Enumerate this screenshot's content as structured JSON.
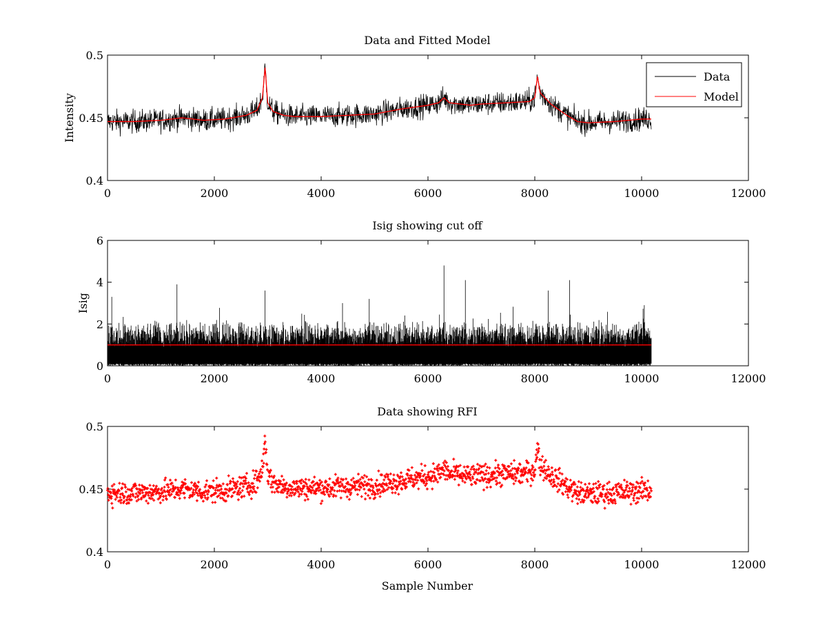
{
  "figure": {
    "background": "#ffffff"
  },
  "chart_data": [
    {
      "type": "line",
      "title": "Data and Fitted Model",
      "xlabel": "",
      "ylabel": "Intensity",
      "xlim": [
        0,
        12000
      ],
      "ylim": [
        0.4,
        0.5
      ],
      "xticks": [
        0,
        2000,
        4000,
        6000,
        8000,
        10000,
        12000
      ],
      "xtick_labels": [
        "0",
        "2000",
        "4000",
        "6000",
        "8000",
        "10000",
        "12000"
      ],
      "yticks": [
        0.4,
        0.45,
        0.5
      ],
      "ytick_labels": [
        "0.4",
        "0.45",
        "0.5"
      ],
      "legend": {
        "position": "top-right",
        "entries": [
          "Data",
          "Model"
        ]
      },
      "series": [
        {
          "name": "Data",
          "color": "#000000",
          "style": "noisy-line",
          "noise": 0.0045,
          "x": [
            0,
            500,
            1000,
            1400,
            1800,
            2200,
            2600,
            2800,
            2900,
            2950,
            3000,
            3100,
            3300,
            3500,
            4000,
            4500,
            5000,
            5500,
            6000,
            6200,
            6300,
            6400,
            6600,
            6800,
            7000,
            7500,
            7900,
            8000,
            8050,
            8100,
            8300,
            8600,
            8800,
            9000,
            9500,
            10000,
            10180
          ],
          "values": [
            0.447,
            0.447,
            0.448,
            0.45,
            0.448,
            0.449,
            0.452,
            0.456,
            0.466,
            0.49,
            0.462,
            0.455,
            0.452,
            0.451,
            0.451,
            0.452,
            0.453,
            0.457,
            0.46,
            0.462,
            0.466,
            0.462,
            0.461,
            0.46,
            0.461,
            0.462,
            0.463,
            0.466,
            0.483,
            0.47,
            0.461,
            0.452,
            0.447,
            0.446,
            0.447,
            0.449,
            0.449
          ]
        },
        {
          "name": "Model",
          "color": "#ff0000",
          "style": "line",
          "x": [
            0,
            500,
            1000,
            1400,
            1800,
            2200,
            2600,
            2800,
            2900,
            2950,
            3000,
            3100,
            3300,
            3500,
            4000,
            4500,
            5000,
            5500,
            6000,
            6200,
            6300,
            6400,
            6600,
            6800,
            7000,
            7500,
            7900,
            8000,
            8050,
            8100,
            8300,
            8600,
            8800,
            9000,
            9500,
            10000,
            10180
          ],
          "values": [
            0.447,
            0.447,
            0.448,
            0.45,
            0.448,
            0.449,
            0.452,
            0.456,
            0.466,
            0.49,
            0.462,
            0.455,
            0.452,
            0.451,
            0.451,
            0.452,
            0.453,
            0.457,
            0.46,
            0.462,
            0.466,
            0.462,
            0.461,
            0.46,
            0.461,
            0.462,
            0.463,
            0.466,
            0.483,
            0.47,
            0.461,
            0.452,
            0.447,
            0.446,
            0.447,
            0.449,
            0.449
          ]
        }
      ]
    },
    {
      "type": "line",
      "title": "Isig showing cut off",
      "xlabel": "",
      "ylabel": "Isig",
      "xlim": [
        0,
        12000
      ],
      "ylim": [
        0,
        6
      ],
      "xticks": [
        0,
        2000,
        4000,
        6000,
        8000,
        10000,
        12000
      ],
      "xtick_labels": [
        "0",
        "2000",
        "4000",
        "6000",
        "8000",
        "10000",
        "12000"
      ],
      "yticks": [
        0,
        2,
        4,
        6
      ],
      "ytick_labels": [
        "0",
        "2",
        "4",
        "6"
      ],
      "series": [
        {
          "name": "Isig",
          "color": "#000000",
          "style": "dense-noise",
          "x_range": [
            0,
            10180
          ],
          "typical_max": 2.0,
          "peaks": [
            {
              "x": 80,
              "value": 3.3
            },
            {
              "x": 1300,
              "value": 3.9
            },
            {
              "x": 2950,
              "value": 3.6
            },
            {
              "x": 4400,
              "value": 3.0
            },
            {
              "x": 4900,
              "value": 3.2
            },
            {
              "x": 6300,
              "value": 4.8
            },
            {
              "x": 6700,
              "value": 4.1
            },
            {
              "x": 8250,
              "value": 3.6
            },
            {
              "x": 8650,
              "value": 4.1
            },
            {
              "x": 10050,
              "value": 2.9
            }
          ]
        },
        {
          "name": "Cut off",
          "color": "#ff0000",
          "style": "line",
          "x": [
            0,
            10180
          ],
          "values": [
            1,
            1
          ]
        }
      ]
    },
    {
      "type": "scatter",
      "title": "Data showing RFI",
      "xlabel": "Sample Number",
      "ylabel": "",
      "xlim": [
        0,
        12000
      ],
      "ylim": [
        0.4,
        0.5
      ],
      "xticks": [
        0,
        2000,
        4000,
        6000,
        8000,
        10000,
        12000
      ],
      "xtick_labels": [
        "0",
        "2000",
        "4000",
        "6000",
        "8000",
        "10000",
        "12000"
      ],
      "yticks": [
        0.4,
        0.45,
        0.5
      ],
      "ytick_labels": [
        "0.4",
        "0.45",
        "0.5"
      ],
      "series": [
        {
          "name": "RFI",
          "color": "#ff0000",
          "style": "marker-band",
          "noise": 0.0045,
          "x": [
            0,
            500,
            1000,
            1400,
            1800,
            2200,
            2600,
            2800,
            2900,
            2950,
            3000,
            3100,
            3300,
            3500,
            4000,
            4500,
            5000,
            5500,
            6000,
            6200,
            6300,
            6400,
            6600,
            6800,
            7000,
            7500,
            7900,
            8000,
            8050,
            8100,
            8300,
            8600,
            8800,
            9000,
            9500,
            10000,
            10180
          ],
          "values": [
            0.447,
            0.447,
            0.448,
            0.45,
            0.448,
            0.449,
            0.452,
            0.456,
            0.466,
            0.49,
            0.462,
            0.455,
            0.452,
            0.451,
            0.451,
            0.452,
            0.453,
            0.457,
            0.46,
            0.462,
            0.466,
            0.462,
            0.461,
            0.46,
            0.461,
            0.462,
            0.463,
            0.466,
            0.483,
            0.47,
            0.461,
            0.452,
            0.447,
            0.446,
            0.447,
            0.449,
            0.449
          ]
        }
      ]
    }
  ]
}
